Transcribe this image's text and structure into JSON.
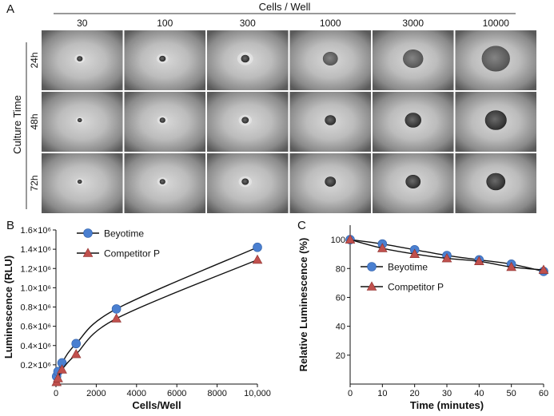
{
  "panel_a": {
    "letter": "A",
    "column_header": "Cells / Well",
    "row_header": "Culture Time",
    "columns": [
      "30",
      "100",
      "300",
      "1000",
      "3000",
      "10000"
    ],
    "rows": [
      "24h",
      "48h",
      "72h"
    ],
    "spheroid_relative_size": [
      [
        0.08,
        0.09,
        0.12,
        0.22,
        0.3,
        0.42
      ],
      [
        0.06,
        0.08,
        0.1,
        0.16,
        0.24,
        0.32
      ],
      [
        0.06,
        0.08,
        0.1,
        0.16,
        0.22,
        0.28
      ]
    ]
  },
  "panel_b_letter": "B",
  "panel_c_letter": "C",
  "chart_data": [
    {
      "id": "B",
      "type": "line",
      "xlabel": "Cells/Well",
      "ylabel": "Luminescence (RLU)",
      "xlim": [
        0,
        10000
      ],
      "ylim": [
        0,
        1600000
      ],
      "xticks": [
        0,
        2000,
        4000,
        6000,
        8000,
        10000
      ],
      "xtick_labels": [
        "0",
        "2000",
        "4000",
        "6000",
        "8000",
        "10,000"
      ],
      "yticks": [
        200000,
        400000,
        600000,
        800000,
        1000000,
        1200000,
        1400000,
        1600000
      ],
      "ytick_labels": [
        "0.2×10⁶",
        "0.4×10⁶",
        "0.6×10⁶",
        "0.8×10⁶",
        "1.0×10⁶",
        "1.2×10⁶",
        "1.4×10⁶",
        "1.6×10⁶"
      ],
      "legend": "top-left",
      "x": [
        30,
        100,
        300,
        1000,
        3000,
        10000
      ],
      "series": [
        {
          "name": "Beyotime",
          "marker": "circle",
          "color": "#4a7fd0",
          "values": [
            80000,
            130000,
            220000,
            420000,
            780000,
            1420000
          ]
        },
        {
          "name": "Competitor P",
          "marker": "triangle",
          "color": "#c0504d",
          "values": [
            20000,
            60000,
            150000,
            310000,
            680000,
            1290000
          ]
        }
      ]
    },
    {
      "id": "C",
      "type": "line",
      "xlabel": "Time (minutes)",
      "ylabel": "Relative Luminescence (%)",
      "xlim": [
        0,
        60
      ],
      "ylim": [
        0,
        110
      ],
      "xticks": [
        0,
        10,
        20,
        30,
        40,
        50,
        60
      ],
      "xtick_labels": [
        "0",
        "10",
        "20",
        "30",
        "40",
        "50",
        "60"
      ],
      "yticks": [
        20,
        40,
        60,
        80,
        100
      ],
      "ytick_labels": [
        "20",
        "40",
        "60",
        "80",
        "100"
      ],
      "legend": "middle-left",
      "x": [
        0,
        10,
        20,
        30,
        40,
        50,
        60
      ],
      "series": [
        {
          "name": "Beyotime",
          "marker": "circle",
          "color": "#4a7fd0",
          "values": [
            100,
            97,
            93,
            89,
            86,
            83,
            78
          ]
        },
        {
          "name": "Competitor P",
          "marker": "triangle",
          "color": "#c0504d",
          "values": [
            100,
            94,
            90,
            87,
            85,
            81,
            79
          ]
        }
      ]
    }
  ]
}
